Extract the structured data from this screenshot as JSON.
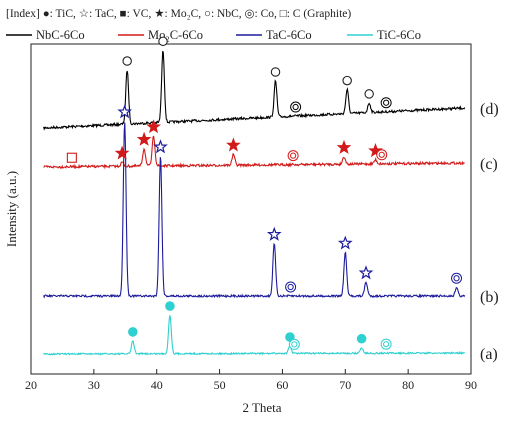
{
  "chart_data": {
    "type": "line",
    "title": "",
    "index_text": "[Index] ●: TiC, ☆: TaC, ■: VC, ★: Mo₂C, ○: NbC, ◎: Co, □: C (Graphite)",
    "xlabel": "2 Theta",
    "ylabel": "Intensity (a.u.)",
    "xlim": [
      20,
      90
    ],
    "xticks": [
      "20",
      "30",
      "40",
      "50",
      "60",
      "70",
      "80",
      "90"
    ],
    "xtick_values": [
      20,
      30,
      40,
      50,
      60,
      70,
      80,
      90
    ],
    "grid": false,
    "legend_position": "top",
    "colors": {
      "NbC-6Co": "#000000",
      "Mo2C-6Co": "#d21a1a",
      "TaC-6Co": "#1c1c9c",
      "TiC-6Co": "#2fd0d0"
    },
    "series": [
      {
        "name": "NbC-6Co",
        "label": "(d)",
        "peaks": [
          {
            "x": 35.3,
            "y": 45,
            "marker": "open-circle"
          },
          {
            "x": 41.0,
            "y": 60,
            "marker": "open-circle"
          },
          {
            "x": 58.9,
            "y": 30,
            "marker": "open-circle"
          },
          {
            "x": 62.1,
            "y": 0,
            "marker": "double-circle"
          },
          {
            "x": 70.3,
            "y": 20,
            "marker": "open-circle"
          },
          {
            "x": 73.8,
            "y": 8,
            "marker": "open-circle"
          },
          {
            "x": 76.5,
            "y": 0,
            "marker": "double-circle"
          }
        ]
      },
      {
        "name": "Mo2C-6Co",
        "label": "(c)",
        "peaks": [
          {
            "x": 26.5,
            "y": 0,
            "marker": "open-square"
          },
          {
            "x": 34.5,
            "y": 8,
            "marker": "filled-star"
          },
          {
            "x": 38.0,
            "y": 35,
            "marker": "filled-star"
          },
          {
            "x": 39.5,
            "y": 60,
            "marker": "filled-star"
          },
          {
            "x": 52.2,
            "y": 22,
            "marker": "filled-star"
          },
          {
            "x": 61.7,
            "y": 0,
            "marker": "double-circle"
          },
          {
            "x": 69.8,
            "y": 15,
            "marker": "filled-star"
          },
          {
            "x": 74.8,
            "y": 8,
            "marker": "filled-star"
          },
          {
            "x": 75.8,
            "y": 0,
            "marker": "double-circle"
          }
        ]
      },
      {
        "name": "TaC-6Co",
        "label": "(b)",
        "peaks": [
          {
            "x": 34.9,
            "y": 100,
            "marker": "open-star"
          },
          {
            "x": 40.6,
            "y": 80,
            "marker": "open-star"
          },
          {
            "x": 58.7,
            "y": 30,
            "marker": "open-star"
          },
          {
            "x": 61.3,
            "y": 0,
            "marker": "double-circle"
          },
          {
            "x": 70.0,
            "y": 25,
            "marker": "open-star"
          },
          {
            "x": 73.3,
            "y": 8,
            "marker": "open-star"
          },
          {
            "x": 87.7,
            "y": 5,
            "marker": "double-circle"
          }
        ]
      },
      {
        "name": "TiC-6Co",
        "label": "(a)",
        "peaks": [
          {
            "x": 36.2,
            "y": 14,
            "marker": "filled-circle"
          },
          {
            "x": 42.1,
            "y": 42,
            "marker": "filled-circle"
          },
          {
            "x": 61.2,
            "y": 8,
            "marker": "filled-circle"
          },
          {
            "x": 61.9,
            "y": 0,
            "marker": "double-circle"
          },
          {
            "x": 72.6,
            "y": 6,
            "marker": "filled-circle"
          },
          {
            "x": 76.5,
            "y": 0,
            "marker": "double-circle"
          }
        ]
      }
    ]
  }
}
